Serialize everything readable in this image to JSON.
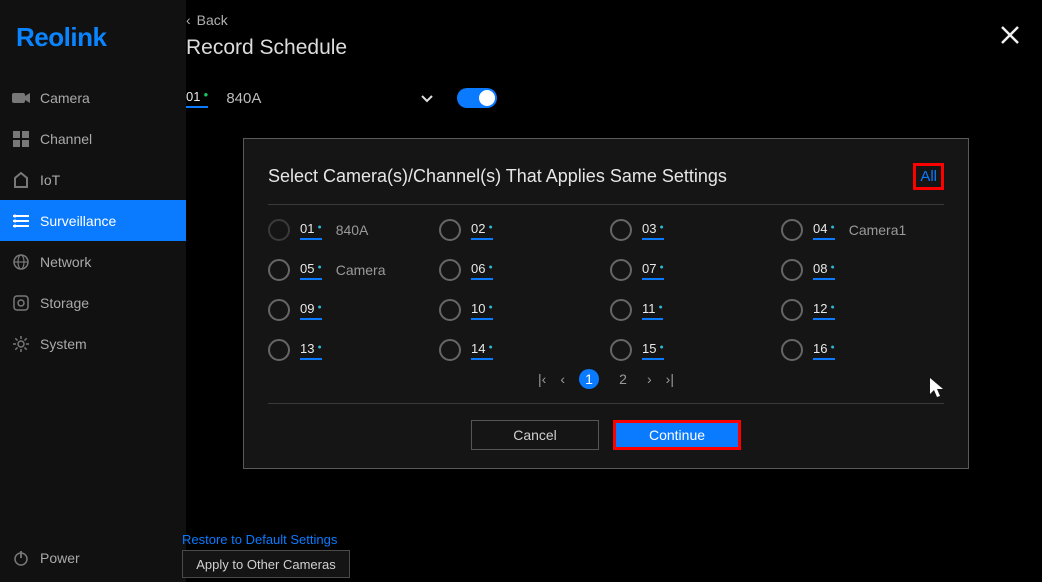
{
  "brand": "Reolink",
  "colors": {
    "accent": "#0a7aff",
    "highlight_border": "#ff0000",
    "background": "#000000",
    "sidebar_bg": "#111111",
    "text": "#c8c8c8"
  },
  "sidebar": {
    "items": [
      {
        "icon": "camera-icon",
        "label": "Camera"
      },
      {
        "icon": "channel-icon",
        "label": "Channel"
      },
      {
        "icon": "iot-icon",
        "label": "IoT"
      },
      {
        "icon": "surveillance-icon",
        "label": "Surveillance",
        "active": true
      },
      {
        "icon": "network-icon",
        "label": "Network"
      },
      {
        "icon": "storage-icon",
        "label": "Storage"
      },
      {
        "icon": "system-icon",
        "label": "System"
      }
    ],
    "power_label": "Power"
  },
  "header": {
    "back_label": "Back",
    "page_title": "Record Schedule"
  },
  "selector": {
    "channel_number": "01",
    "channel_name": "840A",
    "toggle_on": true
  },
  "modal": {
    "title": "Select Camera(s)/Channel(s) That Applies Same Settings",
    "all_label": "All",
    "options": [
      {
        "num": "01",
        "label": "840A",
        "disabled": true
      },
      {
        "num": "02",
        "label": ""
      },
      {
        "num": "03",
        "label": ""
      },
      {
        "num": "04",
        "label": "Camera1"
      },
      {
        "num": "05",
        "label": "Camera"
      },
      {
        "num": "06",
        "label": ""
      },
      {
        "num": "07",
        "label": ""
      },
      {
        "num": "08",
        "label": ""
      },
      {
        "num": "09",
        "label": ""
      },
      {
        "num": "10",
        "label": ""
      },
      {
        "num": "11",
        "label": ""
      },
      {
        "num": "12",
        "label": ""
      },
      {
        "num": "13",
        "label": ""
      },
      {
        "num": "14",
        "label": ""
      },
      {
        "num": "15",
        "label": ""
      },
      {
        "num": "16",
        "label": ""
      }
    ],
    "pagination": {
      "pages": [
        "1",
        "2"
      ],
      "current": "1"
    },
    "cancel_label": "Cancel",
    "continue_label": "Continue"
  },
  "footer": {
    "restore_label": "Restore to Default Settings",
    "apply_label": "Apply to Other Cameras"
  }
}
